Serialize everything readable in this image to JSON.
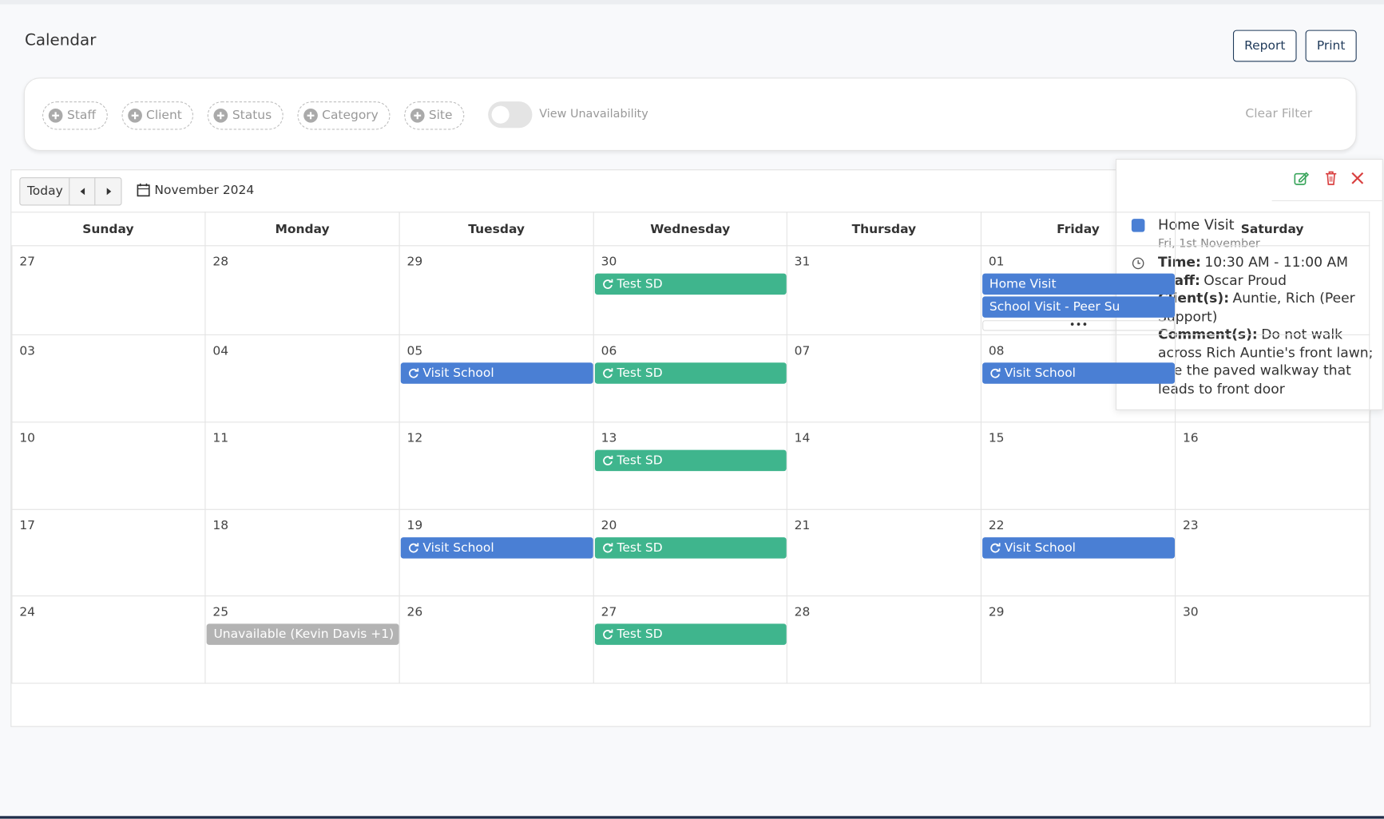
{
  "header": {
    "title": "Calendar",
    "buttons": [
      "Report",
      "Print"
    ]
  },
  "filters": {
    "items": [
      "Staff",
      "Client",
      "Status",
      "Category",
      "Site"
    ],
    "toggle_label": "View Unavailability",
    "clear": "Clear Filter"
  },
  "toolbar": {
    "today": "Today",
    "month": "November 2024"
  },
  "weekdays": [
    "Sunday",
    "Monday",
    "Tuesday",
    "Wednesday",
    "Thursday",
    "Friday",
    "Saturday"
  ],
  "event_colors": {
    "blue": "#4a7fd4",
    "green": "#3fb58d",
    "gray": "#b3b3b3"
  },
  "weeks": [
    {
      "days": [
        "27",
        "28",
        "29",
        "30",
        "31",
        "01",
        null
      ],
      "events": [
        {
          "day": 3,
          "slot": 0,
          "text": "Test SD",
          "kind": "green",
          "recurring": true
        },
        {
          "day": 5,
          "slot": 0,
          "text": "Home Visit",
          "kind": "blue",
          "recurring": false
        },
        {
          "day": 5,
          "slot": 1,
          "text": "School Visit - Peer Su",
          "kind": "blue",
          "recurring": false
        }
      ],
      "more": {
        "day": 5,
        "text": "•••"
      }
    },
    {
      "days": [
        "03",
        "04",
        "05",
        "06",
        "07",
        "08",
        null
      ],
      "events": [
        {
          "day": 2,
          "slot": 0,
          "text": "Visit School",
          "kind": "blue",
          "recurring": true
        },
        {
          "day": 3,
          "slot": 0,
          "text": "Test SD",
          "kind": "green",
          "recurring": true
        },
        {
          "day": 5,
          "slot": 0,
          "text": "Visit School",
          "kind": "blue",
          "recurring": true
        }
      ]
    },
    {
      "days": [
        "10",
        "11",
        "12",
        "13",
        "14",
        "15",
        "16"
      ],
      "events": [
        {
          "day": 3,
          "slot": 0,
          "text": "Test SD",
          "kind": "green",
          "recurring": true
        }
      ]
    },
    {
      "days": [
        "17",
        "18",
        "19",
        "20",
        "21",
        "22",
        "23"
      ],
      "events": [
        {
          "day": 2,
          "slot": 0,
          "text": "Visit School",
          "kind": "blue",
          "recurring": true
        },
        {
          "day": 3,
          "slot": 0,
          "text": "Test SD",
          "kind": "green",
          "recurring": true
        },
        {
          "day": 5,
          "slot": 0,
          "text": "Visit School",
          "kind": "blue",
          "recurring": true
        }
      ]
    },
    {
      "days": [
        "24",
        "25",
        "26",
        "27",
        "28",
        "29",
        "30"
      ],
      "events": [
        {
          "day": 1,
          "slot": 0,
          "text": "Unavailable (Kevin Davis +1)",
          "kind": "gray",
          "recurring": false
        },
        {
          "day": 3,
          "slot": 0,
          "text": "Test SD",
          "kind": "green",
          "recurring": true
        }
      ]
    }
  ],
  "popup": {
    "title": "Home Visit",
    "date": "Fri, 1st November",
    "color": "blue",
    "details": [
      {
        "label": "Time:",
        "value": "10:30 AM - 11:00 AM"
      },
      {
        "label": "Staff:",
        "value": "Oscar Proud"
      },
      {
        "label": "Client(s):",
        "value": "Auntie, Rich (Peer Support)"
      },
      {
        "label": "Comment(s):",
        "value": "Do not walk across Rich Auntie's front lawn; use the paved walkway that leads to front door"
      }
    ]
  }
}
